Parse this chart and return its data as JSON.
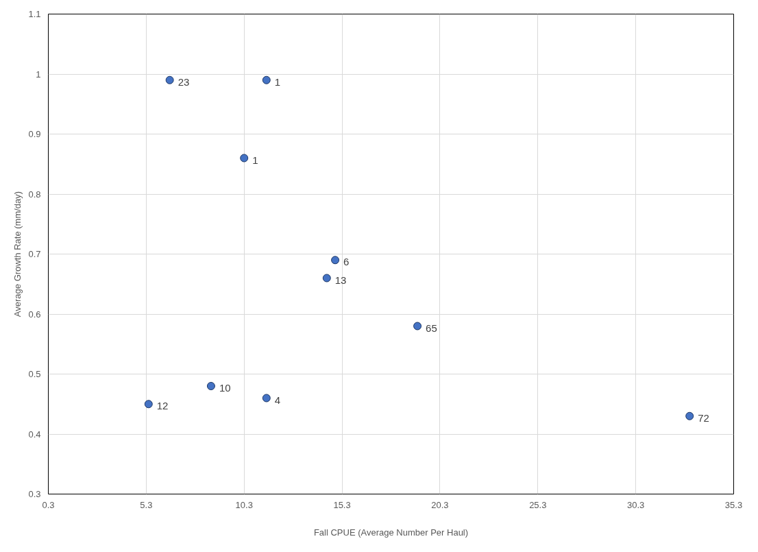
{
  "chart_data": {
    "type": "scatter",
    "xlabel": "Fall CPUE (Average Number Per Haul)",
    "ylabel": "Average Growth Rate (mm/day)",
    "x": [
      6.5,
      11.44,
      10.3,
      14.95,
      14.52,
      19.15,
      8.61,
      11.44,
      5.42,
      33.05
    ],
    "series": [
      {
        "color": "#4472c4",
        "values": [
          0.99,
          0.99,
          0.86,
          0.69,
          0.66,
          0.58,
          0.48,
          0.46,
          0.45,
          0.43
        ]
      }
    ],
    "annotations": [
      {
        "text": "23",
        "x": 6.5,
        "y": 0.99
      },
      {
        "text": "1",
        "x": 11.44,
        "y": 0.99
      },
      {
        "text": "1",
        "x": 10.3,
        "y": 0.86
      },
      {
        "text": "6",
        "x": 14.95,
        "y": 0.69
      },
      {
        "text": "13",
        "x": 14.52,
        "y": 0.66
      },
      {
        "text": "65",
        "x": 19.15,
        "y": 0.58
      },
      {
        "text": "10",
        "x": 8.61,
        "y": 0.48
      },
      {
        "text": "4",
        "x": 11.44,
        "y": 0.46
      },
      {
        "text": "12",
        "x": 5.42,
        "y": 0.45
      },
      {
        "text": "72",
        "x": 33.05,
        "y": 0.43
      }
    ],
    "xlim": [
      0.3,
      35.3
    ],
    "xticks": [
      0.3,
      5.3,
      10.3,
      15.3,
      20.3,
      25.3,
      30.3,
      35.3
    ],
    "ylim": [
      0.3,
      1.1
    ],
    "yticks": [
      0.3,
      0.4,
      0.5,
      0.6,
      0.7,
      0.8,
      0.9,
      1,
      1.1
    ],
    "grid": true,
    "marker": "circle"
  }
}
